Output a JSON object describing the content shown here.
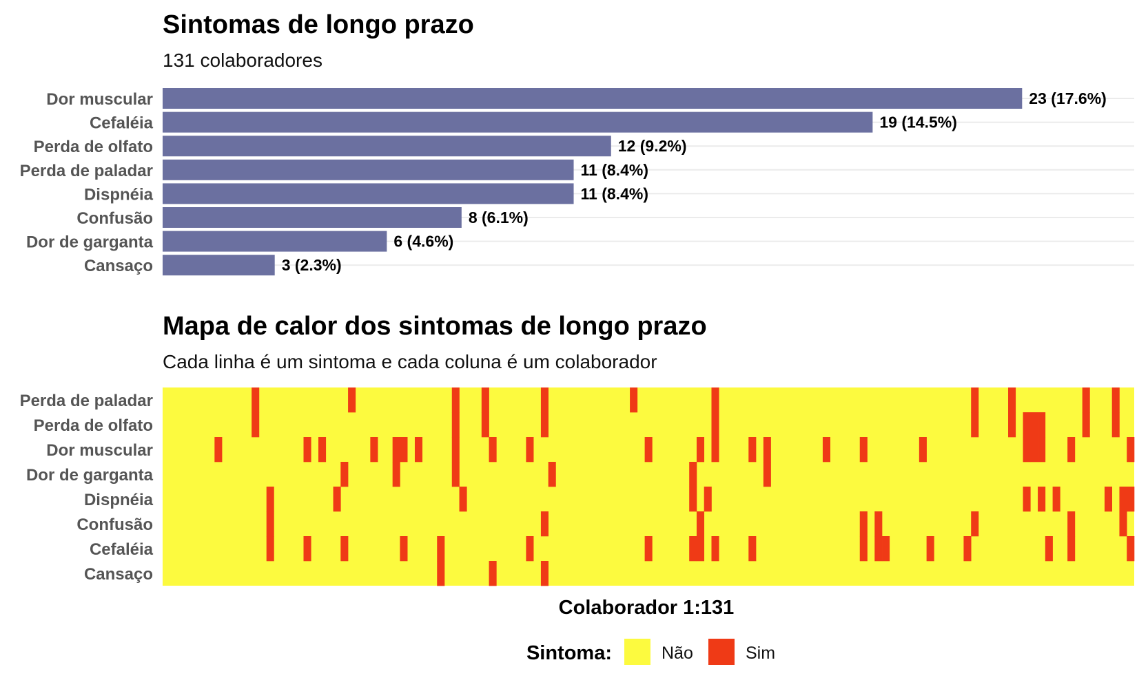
{
  "chart_data": [
    {
      "type": "bar",
      "orientation": "horizontal",
      "title": "Sintomas de longo prazo",
      "subtitle": "131 colaboradores",
      "categories": [
        "Dor muscular",
        "Cefaléia",
        "Perda de olfato",
        "Perda de paladar",
        "Dispnéia",
        "Confusão",
        "Dor de garganta",
        "Cansaço"
      ],
      "values": [
        23,
        19,
        12,
        11,
        11,
        8,
        6,
        3
      ],
      "labels": [
        "23 (17.6%)",
        "19 (14.5%)",
        "12 (9.2%)",
        "11 (8.4%)",
        "11 (8.4%)",
        "8 (6.1%)",
        "6 (4.6%)",
        "3 (2.3%)"
      ],
      "xlim": [
        0,
        26
      ],
      "bar_color": "#6b70a0",
      "grid": "horizontal"
    },
    {
      "type": "heatmap",
      "title": "Mapa de calor dos sintomas de longo prazo",
      "subtitle": "Cada linha é um sintoma e cada coluna é um colaborador",
      "xlabel": "Colaborador 1:131",
      "n_columns": 131,
      "rows": [
        {
          "label": "Perda de paladar",
          "sim_columns": [
            13,
            26,
            40,
            44,
            52,
            64,
            75,
            110,
            115,
            125,
            129
          ]
        },
        {
          "label": "Perda de olfato",
          "sim_columns": [
            13,
            40,
            44,
            52,
            75,
            110,
            115,
            117,
            118,
            119,
            125,
            129
          ]
        },
        {
          "label": "Dor muscular",
          "sim_columns": [
            8,
            20,
            22,
            29,
            32,
            33,
            35,
            40,
            45,
            50,
            66,
            73,
            75,
            80,
            82,
            90,
            95,
            103,
            117,
            118,
            119,
            123,
            131
          ]
        },
        {
          "label": "Dor de garganta",
          "sim_columns": [
            25,
            32,
            40,
            53,
            72,
            82
          ]
        },
        {
          "label": "Dispnéia",
          "sim_columns": [
            15,
            24,
            41,
            72,
            74,
            117,
            119,
            121,
            128,
            130,
            131
          ]
        },
        {
          "label": "Confusão",
          "sim_columns": [
            15,
            52,
            73,
            95,
            97,
            110,
            123,
            130
          ]
        },
        {
          "label": "Cefaléia",
          "sim_columns": [
            15,
            20,
            25,
            33,
            38,
            50,
            66,
            72,
            73,
            75,
            80,
            95,
            97,
            98,
            104,
            109,
            120,
            123,
            131
          ]
        },
        {
          "label": "Cansaço",
          "sim_columns": [
            38,
            45,
            52
          ]
        }
      ],
      "legend": {
        "title": "Sintoma:",
        "items": [
          {
            "label": "Não",
            "color": "#fcfa3f"
          },
          {
            "label": "Sim",
            "color": "#ef3a16"
          }
        ],
        "position": "bottom"
      }
    }
  ]
}
